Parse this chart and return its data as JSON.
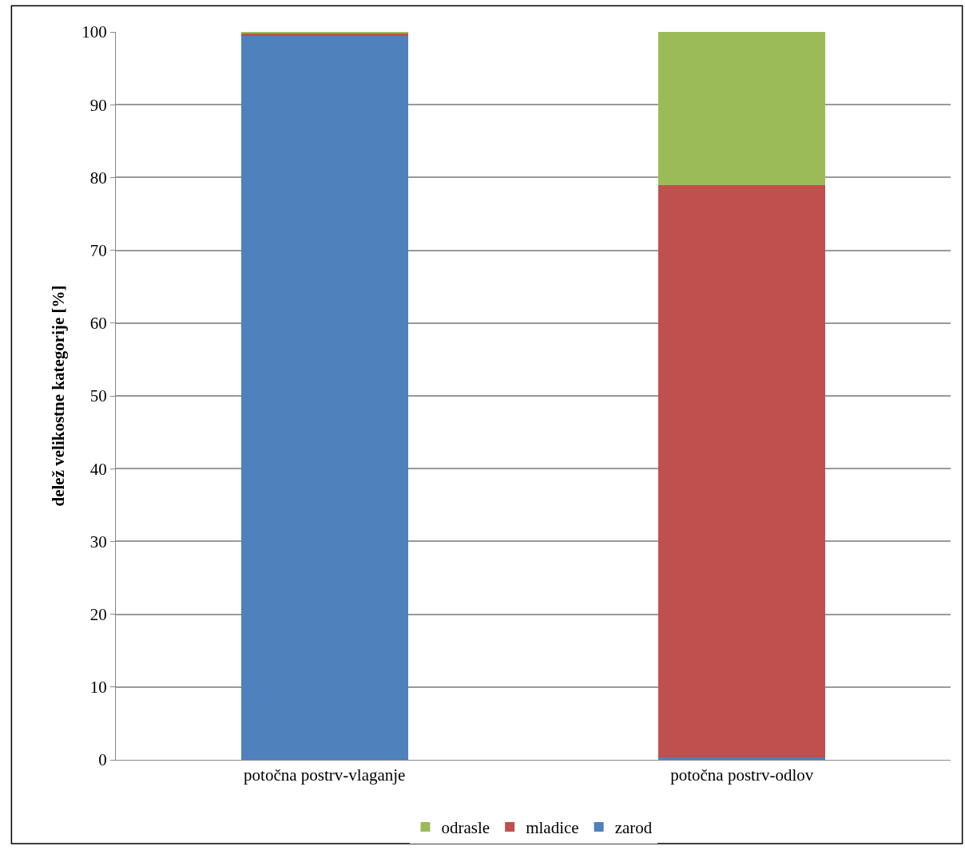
{
  "chart_data": {
    "type": "bar",
    "stacked": true,
    "ylabel": "delež velikostne kategorije [%]",
    "categories": [
      "potočna postrv-vlaganje",
      "potočna postrv-odlov"
    ],
    "series": [
      {
        "name": "zarod",
        "color": "#4f81bd",
        "values": [
          99.4,
          0.3
        ]
      },
      {
        "name": "mladice",
        "color": "#c0504d",
        "values": [
          0.4,
          78.7
        ]
      },
      {
        "name": "odrasle",
        "color": "#9bbb59",
        "values": [
          0.2,
          21.0
        ]
      }
    ],
    "ylim": [
      0,
      100
    ],
    "yticks": [
      0,
      10,
      20,
      30,
      40,
      50,
      60,
      70,
      80,
      90,
      100
    ],
    "grid": "y",
    "legend": "bottom"
  }
}
